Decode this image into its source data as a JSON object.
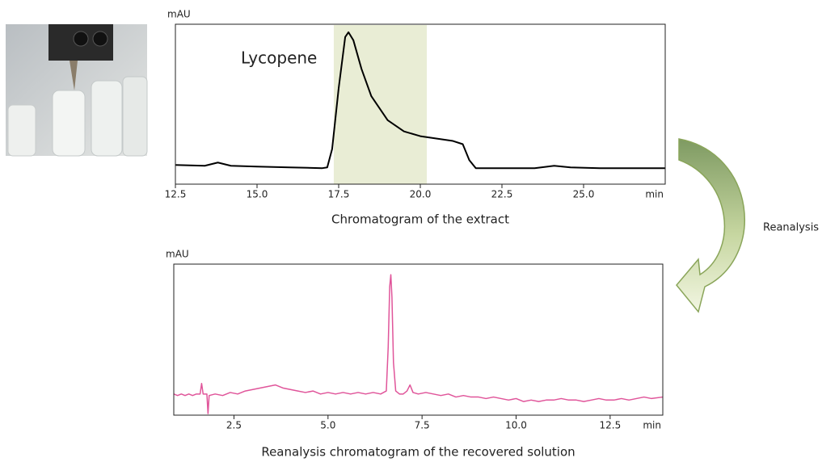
{
  "chart_data": [
    {
      "type": "line",
      "ylabel": "mAU",
      "xunit": "min",
      "caption": "Chromatogram of the extract",
      "annotation": "Lycopene",
      "highlight": {
        "range": [
          17.35,
          20.2
        ],
        "color": "#e9edd5"
      },
      "color": "#000000",
      "x": [
        12.5,
        13.4,
        13.8,
        14.2,
        15,
        16,
        17.0,
        17.15,
        17.3,
        17.5,
        17.7,
        17.8,
        17.95,
        18.2,
        18.5,
        19.0,
        19.5,
        20,
        21,
        21.3,
        21.5,
        21.7,
        22.5,
        23.5,
        24.1,
        24.6,
        25.5,
        27.5
      ],
      "values": [
        12,
        11.5,
        13.5,
        11.5,
        11,
        10.5,
        10,
        10.5,
        22,
        60,
        92,
        95,
        90,
        72,
        55,
        40,
        33,
        30,
        27,
        25,
        15,
        10,
        10,
        10,
        11.5,
        10.5,
        10,
        10
      ],
      "xlim": [
        12.5,
        27.5
      ],
      "ylim": [
        0,
        100
      ],
      "xticks": [
        12.5,
        {
          "value": 15,
          "label": "15.0"
        },
        17.5,
        {
          "value": 20,
          "label": "20.0"
        },
        22.5,
        {
          "value": 25,
          "label": "25.0"
        }
      ]
    },
    {
      "type": "line",
      "ylabel": "mAU",
      "xunit": "min",
      "caption": "Reanalysis chromatogram of the recovered solution",
      "color": "#e0559a",
      "x": [
        0.9,
        1.0,
        1.1,
        1.2,
        1.3,
        1.4,
        1.5,
        1.6,
        1.64,
        1.68,
        1.78,
        1.81,
        1.84,
        2.0,
        2.2,
        2.4,
        2.6,
        2.8,
        3.0,
        3.2,
        3.4,
        3.6,
        3.8,
        4.0,
        4.2,
        4.4,
        4.6,
        4.8,
        5.0,
        5.2,
        5.4,
        5.6,
        5.8,
        6.0,
        6.2,
        6.4,
        6.55,
        6.6,
        6.64,
        6.67,
        6.7,
        6.74,
        6.8,
        6.9,
        7.0,
        7.1,
        7.18,
        7.26,
        7.4,
        7.6,
        7.8,
        8.0,
        8.2,
        8.4,
        8.6,
        8.8,
        9.0,
        9.2,
        9.4,
        9.6,
        9.8,
        10.0,
        10.2,
        10.4,
        10.6,
        10.8,
        11.0,
        11.2,
        11.4,
        11.6,
        11.8,
        12.0,
        12.2,
        12.4,
        12.6,
        12.8,
        13.0,
        13.2,
        13.4,
        13.6,
        13.9
      ],
      "values": [
        14,
        13,
        14,
        13,
        14,
        13,
        14,
        14,
        21,
        14,
        14,
        1,
        13,
        14,
        13,
        15,
        14,
        16,
        17,
        18,
        19,
        20,
        18,
        17,
        16,
        15,
        16,
        14,
        15,
        14,
        15,
        14,
        15,
        14,
        15,
        14,
        16,
        45,
        85,
        93,
        78,
        35,
        16,
        14,
        14,
        16,
        20,
        15,
        14,
        15,
        14,
        13,
        14,
        12,
        13,
        12,
        12,
        11,
        12,
        11,
        10,
        11,
        9,
        10,
        9,
        10,
        10,
        11,
        10,
        10,
        9,
        10,
        11,
        10,
        10,
        11,
        10,
        11,
        12,
        11,
        12
      ],
      "xlim": [
        0.9,
        13.9
      ],
      "ylim": [
        0,
        100
      ],
      "xticks": [
        2.5,
        {
          "value": 5,
          "label": "5.0"
        },
        7.5,
        {
          "value": 10,
          "label": "10.0"
        },
        12.5
      ]
    }
  ],
  "arrow_label": "Reanalysis"
}
